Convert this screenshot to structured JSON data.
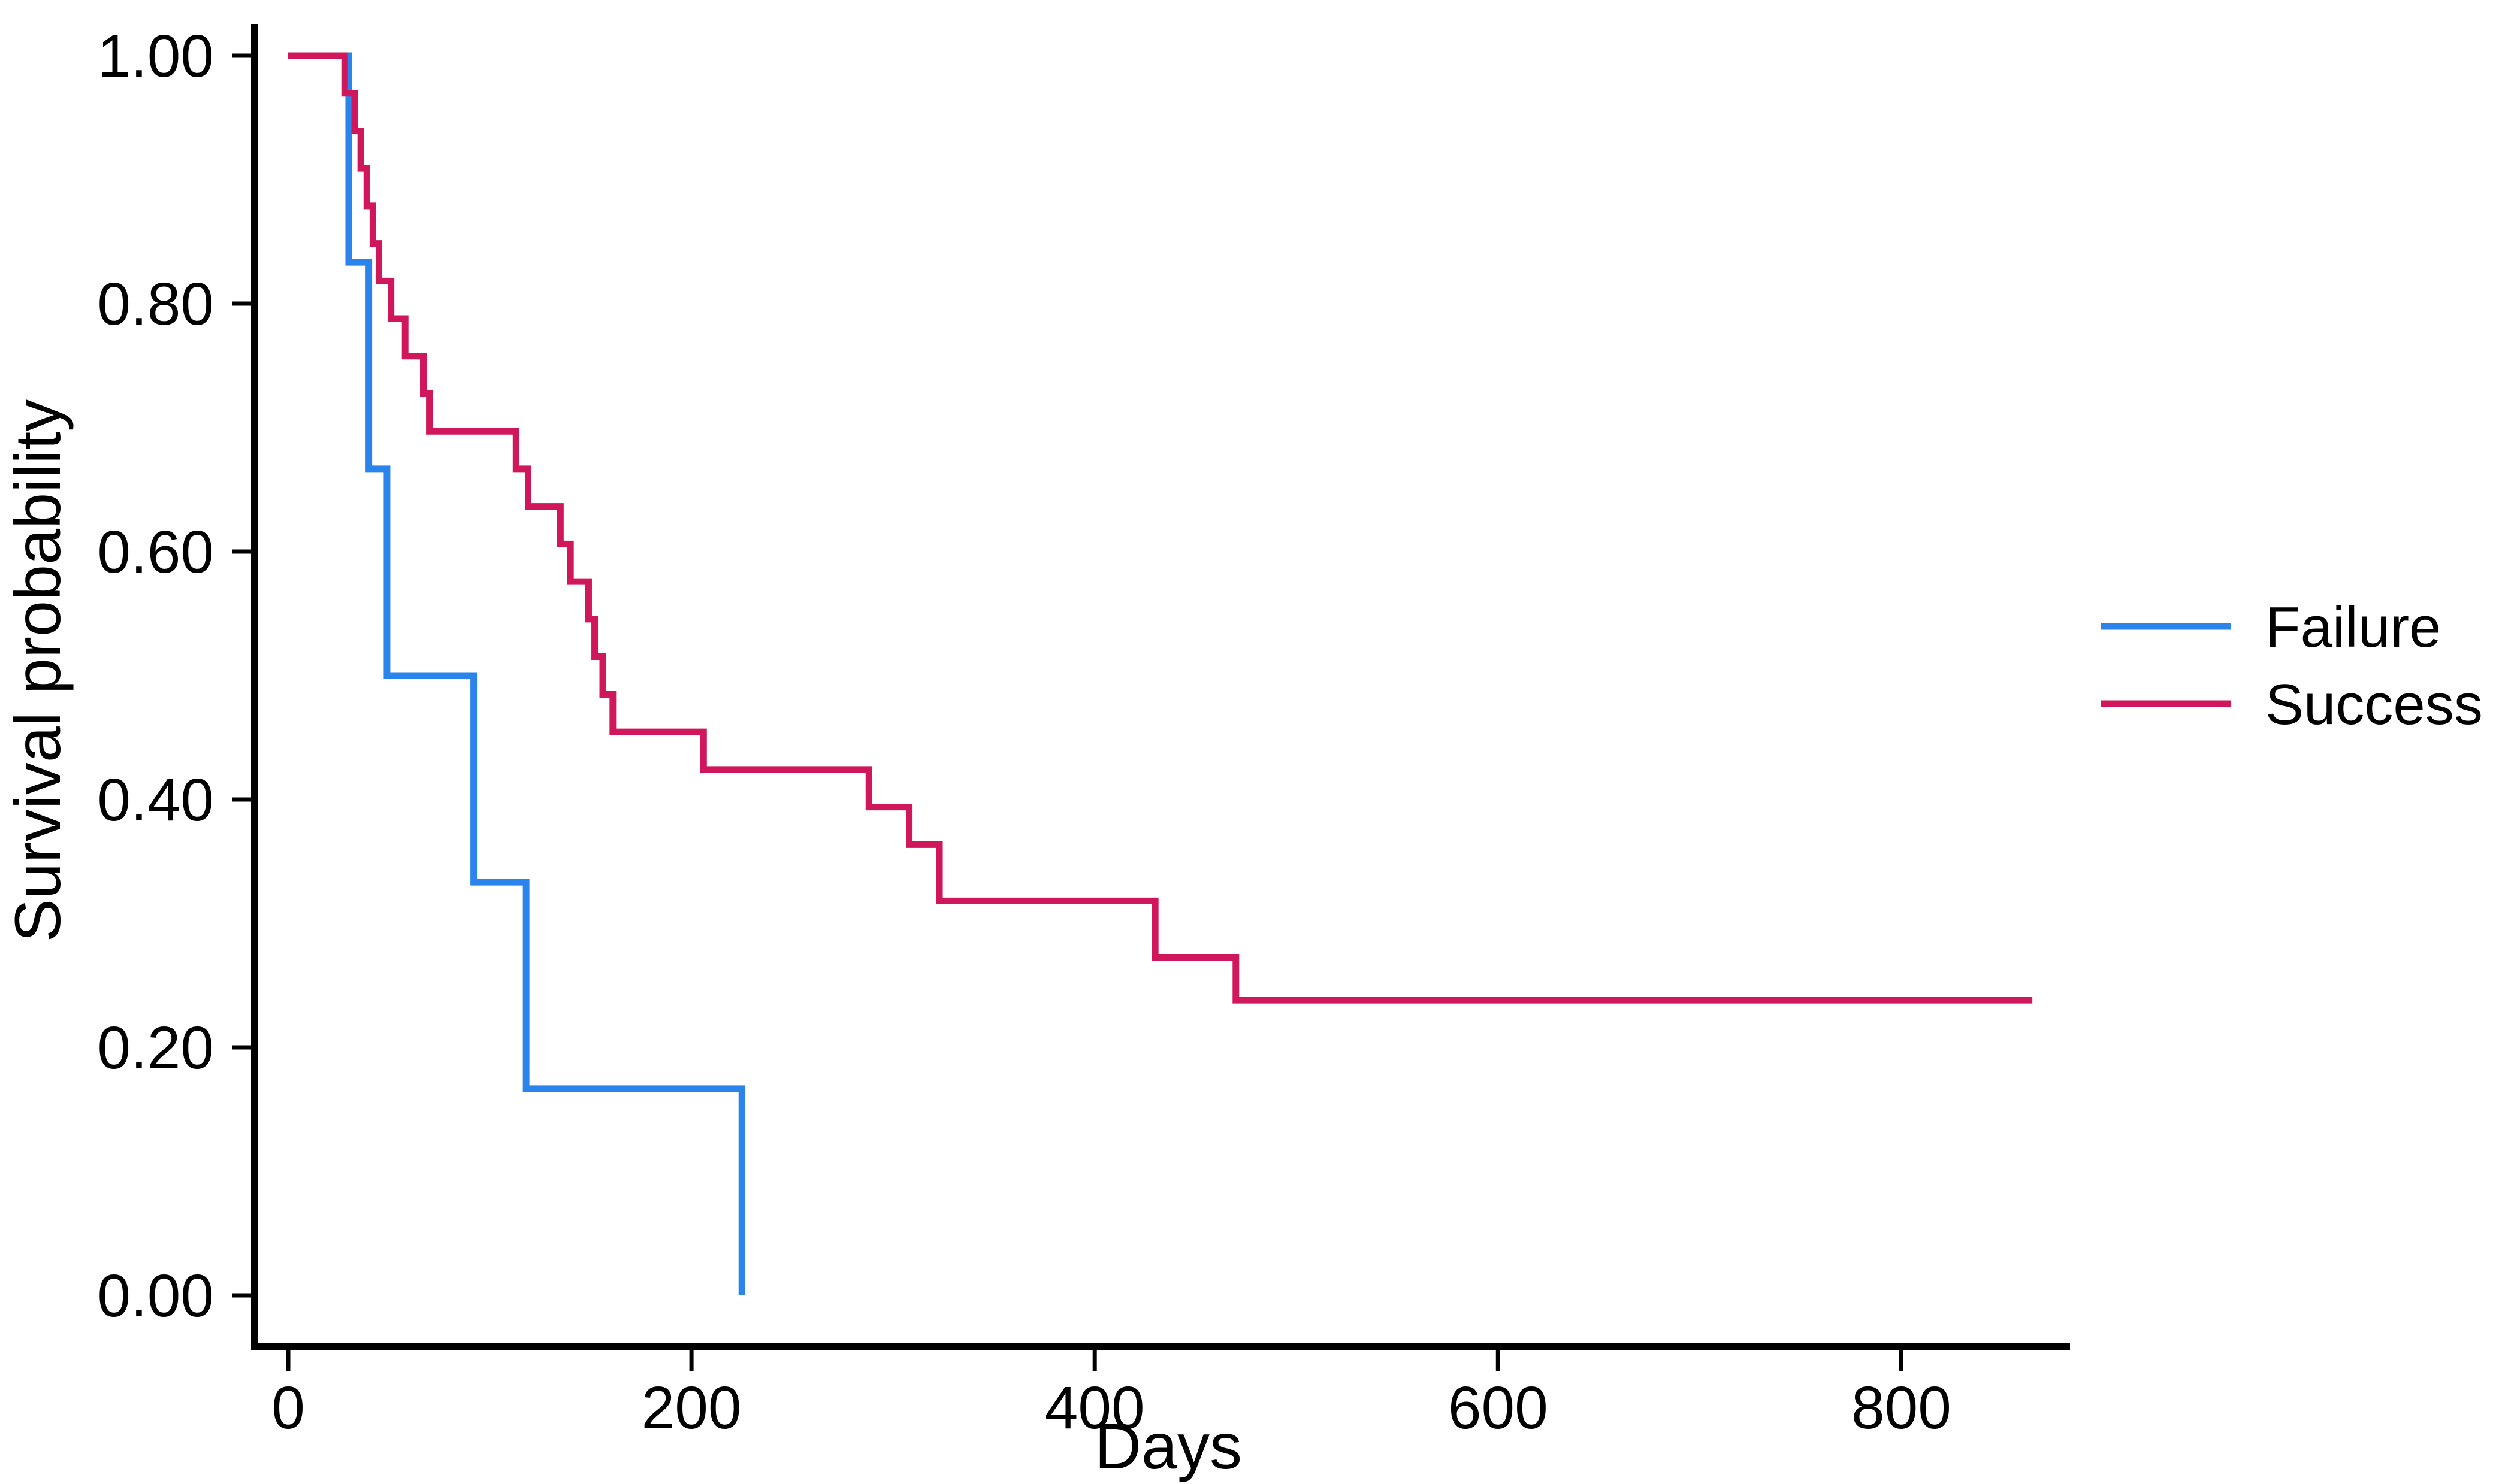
{
  "page": {
    "background": "#FFFFFF",
    "text_color": "#000000"
  },
  "chart_data": {
    "type": "line",
    "subtype": "kaplan_meier_step_survival",
    "title": "",
    "xlabel": "Days",
    "ylabel": "Survival probability",
    "xlim": [
      0,
      884
    ],
    "ylim": [
      0,
      1
    ],
    "grid": false,
    "legend_position": "right-outside-middle",
    "x_ticks": [
      {
        "value": 0,
        "label": "0"
      },
      {
        "value": 200,
        "label": "200"
      },
      {
        "value": 400,
        "label": "400"
      },
      {
        "value": 600,
        "label": "600"
      },
      {
        "value": 800,
        "label": "800"
      }
    ],
    "y_ticks": [
      {
        "value": 0.0,
        "label": "0.00"
      },
      {
        "value": 0.2,
        "label": "0.20"
      },
      {
        "value": 0.4,
        "label": "0.40"
      },
      {
        "value": 0.6,
        "label": "0.60"
      },
      {
        "value": 0.8,
        "label": "0.80"
      },
      {
        "value": 1.0,
        "label": "1.00"
      }
    ],
    "series": [
      {
        "name": "Failure",
        "color": "#2B84EC",
        "step": "post",
        "points": [
          [
            0,
            1.0
          ],
          [
            30,
            0.8333
          ],
          [
            40,
            0.6667
          ],
          [
            49,
            0.5
          ],
          [
            92,
            0.3333
          ],
          [
            118,
            0.1667
          ],
          [
            225,
            0.0
          ]
        ]
      },
      {
        "name": "Success",
        "color": "#D1175B",
        "step": "post",
        "end_x": 865,
        "points": [
          [
            0,
            1.0
          ],
          [
            28,
            0.9697
          ],
          [
            33,
            0.9394
          ],
          [
            36,
            0.9091
          ],
          [
            39,
            0.8788
          ],
          [
            42,
            0.8485
          ],
          [
            45,
            0.8182
          ],
          [
            51,
            0.7879
          ],
          [
            58,
            0.7576
          ],
          [
            67,
            0.7273
          ],
          [
            70,
            0.697
          ],
          [
            113,
            0.6667
          ],
          [
            119,
            0.6364
          ],
          [
            135,
            0.6061
          ],
          [
            140,
            0.5758
          ],
          [
            149,
            0.5455
          ],
          [
            152,
            0.5152
          ],
          [
            156,
            0.4848
          ],
          [
            161,
            0.4545
          ],
          [
            206,
            0.4242
          ],
          [
            288,
            0.3939
          ],
          [
            308,
            0.3636
          ],
          [
            323,
            0.3182
          ],
          [
            430,
            0.2727
          ],
          [
            470,
            0.2381
          ]
        ]
      }
    ]
  }
}
